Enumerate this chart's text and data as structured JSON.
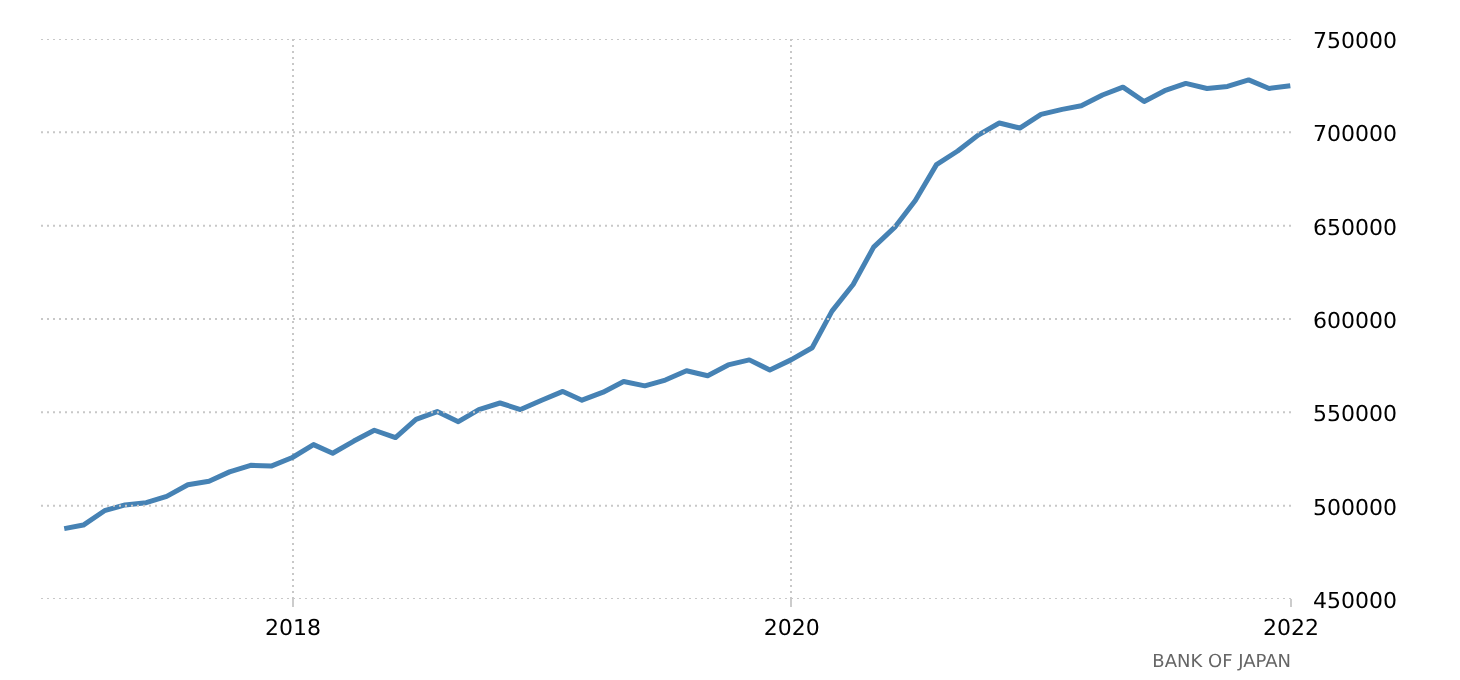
{
  "chart_data": {
    "type": "line",
    "x": [
      "2017-01-31",
      "2017-02-28",
      "2017-03-31",
      "2017-04-30",
      "2017-05-31",
      "2017-06-30",
      "2017-07-31",
      "2017-08-31",
      "2017-09-30",
      "2017-10-31",
      "2017-11-30",
      "2017-12-31",
      "2018-01-31",
      "2018-02-28",
      "2018-03-31",
      "2018-04-30",
      "2018-05-31",
      "2018-06-30",
      "2018-07-31",
      "2018-08-31",
      "2018-09-30",
      "2018-10-31",
      "2018-11-30",
      "2018-12-31",
      "2019-01-31",
      "2019-02-28",
      "2019-03-31",
      "2019-04-30",
      "2019-05-31",
      "2019-06-30",
      "2019-07-31",
      "2019-08-31",
      "2019-09-30",
      "2019-10-31",
      "2019-11-30",
      "2019-12-31",
      "2020-01-31",
      "2020-02-29",
      "2020-03-31",
      "2020-04-30",
      "2020-05-31",
      "2020-06-30",
      "2020-07-31",
      "2020-08-31",
      "2020-09-30",
      "2020-10-31",
      "2020-11-30",
      "2020-12-31",
      "2021-01-31",
      "2021-02-28",
      "2021-03-31",
      "2021-04-30",
      "2021-05-31",
      "2021-06-30",
      "2021-07-31",
      "2021-08-31",
      "2021-09-30",
      "2021-10-31",
      "2021-11-30",
      "2021-12-31"
    ],
    "series": [
      {
        "color": "#4682b4",
        "values": [
          487700,
          489600,
          497300,
          500400,
          501600,
          505000,
          511200,
          513100,
          518100,
          521600,
          521200,
          525800,
          532700,
          528100,
          534600,
          540400,
          536500,
          546200,
          550400,
          545000,
          551500,
          555000,
          551500,
          556500,
          561200,
          556500,
          560800,
          566500,
          564200,
          567300,
          572300,
          569600,
          575400,
          578100,
          572700,
          578100,
          584600,
          604200,
          618500,
          638500,
          649200,
          663500,
          682700,
          690000,
          698500,
          705000,
          702300,
          709600,
          712300,
          714200,
          720000,
          724200,
          716500,
          722300,
          726200,
          723500,
          724600,
          728100,
          723500,
          725000
        ]
      }
    ],
    "xlim": [
      "2016-12-28",
      "2022-01-01"
    ],
    "xticks": [
      "2018",
      "2020",
      "2022"
    ],
    "ylim": [
      450000,
      750000
    ],
    "yticks": [
      450000,
      500000,
      550000,
      600000,
      650000,
      700000,
      750000
    ],
    "grid": true,
    "marker": "none",
    "line_style": "solid",
    "annotations": [
      "BANK OF JAPAN"
    ]
  }
}
